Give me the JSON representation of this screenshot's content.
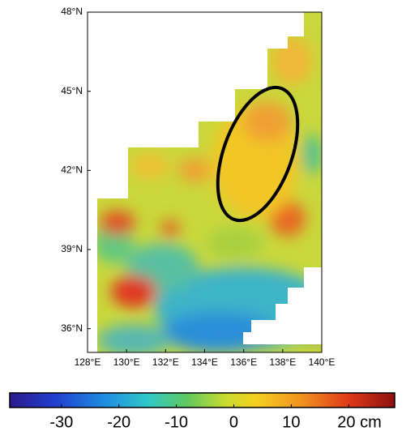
{
  "map": {
    "xlim": [
      128,
      140
    ],
    "ylim": [
      35.1,
      48
    ],
    "xticks": [
      {
        "value": 128,
        "label": "128°E"
      },
      {
        "value": 130,
        "label": "130°E"
      },
      {
        "value": 132,
        "label": "132°E"
      },
      {
        "value": 134,
        "label": "134°E"
      },
      {
        "value": 136,
        "label": "136°E"
      },
      {
        "value": 138,
        "label": "138°E"
      },
      {
        "value": 140,
        "label": "140°E"
      }
    ],
    "yticks": [
      {
        "value": 36,
        "label": "36°N"
      },
      {
        "value": 39,
        "label": "39°N"
      },
      {
        "value": 42,
        "label": "42°N"
      },
      {
        "value": 45,
        "label": "45°N"
      },
      {
        "value": 48,
        "label": "48°N"
      }
    ]
  },
  "colorbar": {
    "lim": [
      -39,
      28
    ],
    "ticks": [
      -30,
      -20,
      -10,
      0,
      10,
      {
        "value": 20,
        "label": "20 cm"
      }
    ]
  }
}
